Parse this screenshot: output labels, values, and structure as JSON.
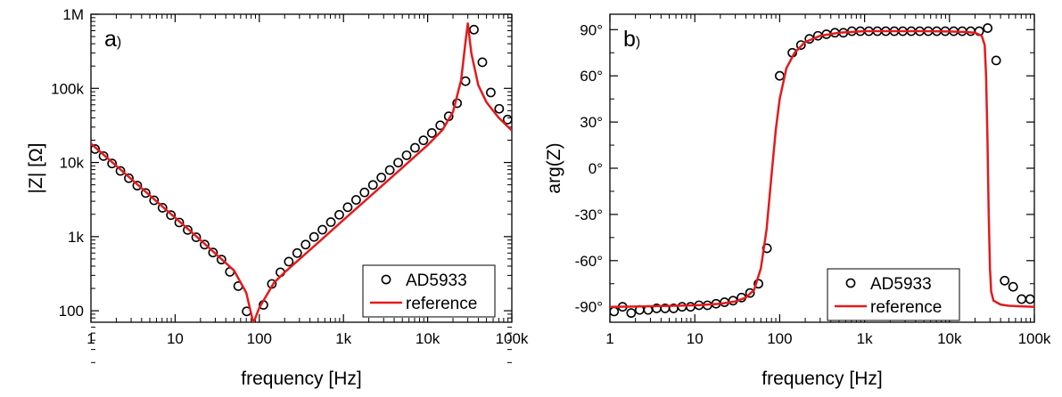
{
  "chart_data": [
    {
      "type": "scatter",
      "panel_label": "a",
      "xlabel": "frequency [Hz]",
      "ylabel": "|Z| [Ω]",
      "x_scale": "log",
      "y_scale": "log",
      "xlim": [
        1,
        100000
      ],
      "ylim": [
        70,
        1000000
      ],
      "x_ticks": [
        {
          "value": 1,
          "label": "1"
        },
        {
          "value": 10,
          "label": "10"
        },
        {
          "value": 100,
          "label": "100"
        },
        {
          "value": 1000,
          "label": "1k"
        },
        {
          "value": 10000,
          "label": "10k"
        },
        {
          "value": 100000,
          "label": "100k"
        }
      ],
      "y_ticks": [
        {
          "value": 100,
          "label": "100"
        },
        {
          "value": 1000,
          "label": "1k"
        },
        {
          "value": 10000,
          "label": "10k"
        },
        {
          "value": 100000,
          "label": "100k"
        },
        {
          "value": 1000000,
          "label": "1M"
        }
      ],
      "grid": false,
      "legend": {
        "position": "bottom-right"
      },
      "series": [
        {
          "name": "AD5933",
          "style": "markers",
          "color": "#000000",
          "x": [
            1.12,
            1.41,
            1.78,
            2.24,
            2.82,
            3.55,
            4.47,
            5.62,
            7.08,
            8.91,
            11.2,
            14.1,
            17.8,
            22.4,
            28.2,
            35.5,
            44.7,
            56.2,
            70.8,
            112,
            141,
            178,
            224,
            282,
            355,
            447,
            562,
            708,
            891,
            1122,
            1413,
            1778,
            2239,
            2818,
            3548,
            4467,
            5623,
            7079,
            8913,
            11220,
            14125,
            17783,
            22387,
            28184,
            35481,
            44668,
            56234,
            70795,
            89125
          ],
          "y": [
            15200,
            12200,
            9700,
            7700,
            6150,
            4880,
            3880,
            3090,
            2450,
            1950,
            1550,
            1230,
            980,
            780,
            610,
            490,
            335,
            215,
            98,
            120,
            230,
            330,
            460,
            600,
            780,
            990,
            1240,
            1570,
            1970,
            2490,
            3130,
            3950,
            4970,
            6270,
            7900,
            9950,
            12500,
            15800,
            19900,
            25000,
            31700,
            42000,
            63000,
            125000,
            620000,
            225000,
            88000,
            53000,
            38000
          ]
        },
        {
          "name": "reference",
          "style": "line",
          "color": "#e41a1c",
          "x": [
            1,
            2,
            5,
            10,
            20,
            50,
            70,
            85,
            100,
            150,
            200,
            500,
            1000,
            2000,
            5000,
            10000,
            15000,
            20000,
            25000,
            28000,
            30000,
            33000,
            40000,
            50000,
            70000,
            100000
          ],
          "y": [
            18000,
            9000,
            3600,
            1800,
            900,
            350,
            175,
            68,
            110,
            240,
            330,
            830,
            1680,
            3380,
            8500,
            17200,
            27500,
            48000,
            130000,
            400000,
            750000,
            300000,
            110000,
            65000,
            40000,
            27000
          ]
        }
      ]
    },
    {
      "type": "scatter",
      "panel_label": "b",
      "xlabel": "frequency [Hz]",
      "ylabel": "arg(Z)",
      "x_scale": "log",
      "y_scale": "linear",
      "xlim": [
        1,
        100000
      ],
      "ylim": [
        -100,
        100
      ],
      "x_ticks": [
        {
          "value": 1,
          "label": "1"
        },
        {
          "value": 10,
          "label": "10"
        },
        {
          "value": 100,
          "label": "100"
        },
        {
          "value": 1000,
          "label": "1k"
        },
        {
          "value": 10000,
          "label": "10k"
        },
        {
          "value": 100000,
          "label": "100k"
        }
      ],
      "y_ticks": [
        {
          "value": -90,
          "label": "-90°"
        },
        {
          "value": -60,
          "label": "-60°"
        },
        {
          "value": -30,
          "label": "-30°"
        },
        {
          "value": 0,
          "label": "0°"
        },
        {
          "value": 30,
          "label": "30°"
        },
        {
          "value": 60,
          "label": "60°"
        },
        {
          "value": 90,
          "label": "90°"
        }
      ],
      "grid": false,
      "legend": {
        "position": "bottom-right"
      },
      "series": [
        {
          "name": "AD5933",
          "style": "markers",
          "color": "#000000",
          "x": [
            1.12,
            1.41,
            1.78,
            2.24,
            2.82,
            3.55,
            4.47,
            5.62,
            7.08,
            8.91,
            11.2,
            14.1,
            17.8,
            22.4,
            28.2,
            35.5,
            44.7,
            56.2,
            70.8,
            100,
            141,
            178,
            224,
            282,
            355,
            447,
            562,
            708,
            891,
            1122,
            1413,
            1778,
            2239,
            2818,
            3548,
            4467,
            5623,
            7079,
            8913,
            11220,
            14125,
            17783,
            22387,
            28184,
            35481,
            44668,
            56234,
            70795,
            89125
          ],
          "y": [
            -93,
            -90,
            -94,
            -92,
            -92,
            -91,
            -91,
            -91,
            -90,
            -90,
            -89,
            -89,
            -88,
            -87,
            -86,
            -84,
            -81,
            -75,
            -52,
            60,
            75,
            80,
            84,
            86,
            87,
            88,
            88,
            89,
            89,
            89,
            89,
            89,
            89,
            89,
            89,
            89,
            89,
            89,
            89,
            89,
            89,
            89,
            89,
            91,
            70,
            -73,
            -77,
            -85,
            -85
          ]
        },
        {
          "name": "reference",
          "style": "line",
          "color": "#e41a1c",
          "x": [
            1,
            2,
            5,
            10,
            20,
            30,
            40,
            50,
            60,
            70,
            80,
            90,
            100,
            120,
            150,
            200,
            300,
            500,
            1000,
            5000,
            10000,
            15000,
            20000,
            24000,
            26000,
            27000,
            28000,
            29000,
            30000,
            31000,
            33000,
            40000,
            50000,
            70000,
            100000
          ],
          "y": [
            -90,
            -89.8,
            -89.4,
            -89,
            -88,
            -86.5,
            -84,
            -79,
            -65,
            -40,
            -5,
            25,
            45,
            65,
            75,
            82,
            86,
            88,
            89,
            89,
            88.8,
            88.5,
            88,
            86,
            80,
            60,
            20,
            -30,
            -65,
            -80,
            -86,
            -88.5,
            -89.3,
            -89.7,
            -90
          ]
        }
      ]
    }
  ]
}
